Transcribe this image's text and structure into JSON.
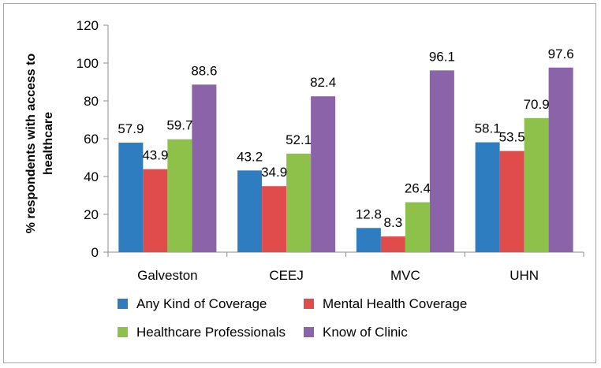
{
  "chart_data": {
    "type": "bar",
    "title": "",
    "xlabel": "",
    "ylabel": [
      "% respondents with access to",
      "healthcare"
    ],
    "ylim": [
      0,
      120
    ],
    "yticks": [
      "0",
      "20",
      "40",
      "60",
      "80",
      "100",
      "120"
    ],
    "grid": false,
    "legend_position": "bottom",
    "categories": [
      "Galveston",
      "CEEJ",
      "MVC",
      "UHN"
    ],
    "series": [
      {
        "name": "Any Kind of Coverage",
        "color": "#2e7dc0",
        "values": [
          57.9,
          43.2,
          12.8,
          58.1
        ],
        "labels": [
          "57.9",
          "43.2",
          "12.8",
          "58.1"
        ]
      },
      {
        "name": "Mental Health Coverage",
        "color": "#e04b4b",
        "values": [
          43.9,
          34.9,
          8.3,
          53.5
        ],
        "labels": [
          "43.9",
          "34.9",
          "8.3",
          "53.5"
        ]
      },
      {
        "name": "Healthcare Professionals",
        "color": "#8dc14a",
        "values": [
          59.7,
          52.1,
          26.4,
          70.9
        ],
        "labels": [
          "59.7",
          "52.1",
          "26.4",
          "70.9"
        ]
      },
      {
        "name": "Know of Clinic",
        "color": "#8b63a8",
        "values": [
          88.6,
          82.4,
          96.1,
          97.6
        ],
        "labels": [
          "88.6",
          "82.4",
          "96.1",
          "97.6"
        ]
      }
    ]
  }
}
